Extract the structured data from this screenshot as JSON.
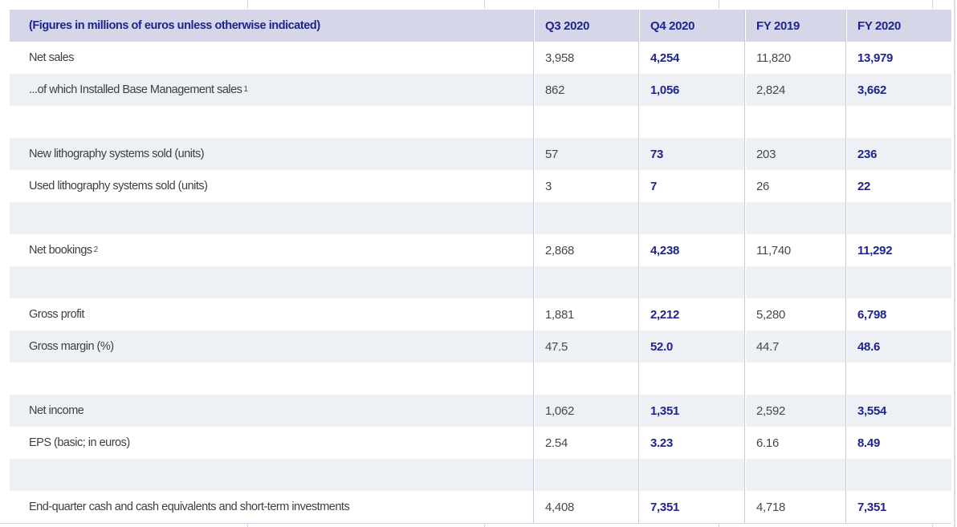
{
  "colors": {
    "header_bg": "#d5d7e8",
    "stripe_bg": "#edf0f4",
    "divider": "#c7cadd",
    "navy_accent": "#1e2490",
    "value_gray": "#45484e"
  },
  "table": {
    "header": {
      "note": "(Figures in millions of euros unless otherwise indicated)",
      "columns": [
        "Q3 2020",
        "Q4 2020",
        "FY 2019",
        "FY 2020"
      ]
    },
    "highlight_columns": [
      1,
      3
    ],
    "rows": [
      {
        "label": "Net sales",
        "sup": "",
        "values": [
          "3,958",
          "4,254",
          "11,820",
          "13,979"
        ]
      },
      {
        "label": "...of which Installed Base Management sales",
        "sup": "1",
        "values": [
          "862",
          "1,056",
          "2,824",
          "3,662"
        ]
      },
      {
        "spacer": true
      },
      {
        "label": "New lithography systems sold (units)",
        "sup": "",
        "values": [
          "57",
          "73",
          "203",
          "236"
        ]
      },
      {
        "label": "Used lithography systems sold (units)",
        "sup": "",
        "values": [
          "3",
          "7",
          "26",
          "22"
        ]
      },
      {
        "spacer": true
      },
      {
        "label": "Net bookings",
        "sup": "2",
        "values": [
          "2,868",
          "4,238",
          "11,740",
          "11,292"
        ]
      },
      {
        "spacer": true
      },
      {
        "label": "Gross profit",
        "sup": "",
        "values": [
          "1,881",
          "2,212",
          "5,280",
          "6,798"
        ]
      },
      {
        "label": "Gross margin (%)",
        "sup": "",
        "values": [
          "47.5",
          "52.0",
          "44.7",
          "48.6"
        ]
      },
      {
        "spacer": true
      },
      {
        "label": "Net income",
        "sup": "",
        "values": [
          "1,062",
          "1,351",
          "2,592",
          "3,554"
        ]
      },
      {
        "label": "EPS (basic; in euros)",
        "sup": "",
        "values": [
          "2.54",
          "3.23",
          "6.16",
          "8.49"
        ]
      },
      {
        "spacer": true
      },
      {
        "label": "End-quarter cash and cash equivalents and short-term investments",
        "sup": "",
        "values": [
          "4,408",
          "7,351",
          "4,718",
          "7,351"
        ]
      }
    ]
  }
}
